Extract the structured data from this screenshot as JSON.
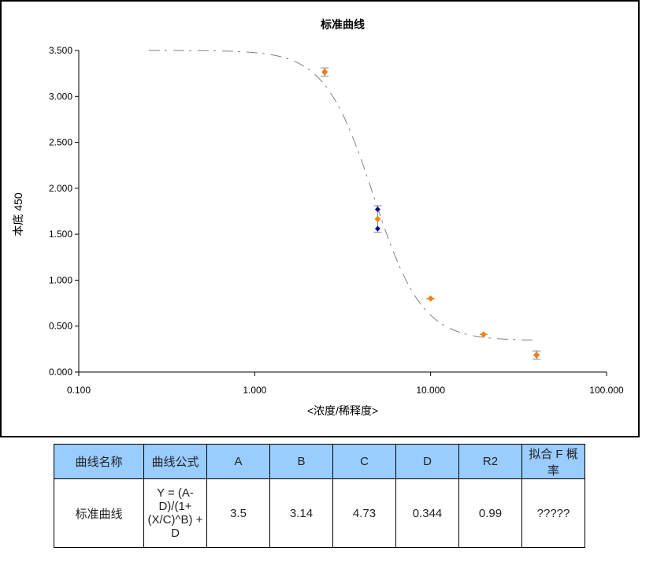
{
  "chart_data": {
    "type": "scatter",
    "title": "标准曲线",
    "xlabel": "<浓度/稀释度>",
    "ylabel": "本底 450",
    "xscale": "log",
    "xlim": [
      0.1,
      100
    ],
    "ylim": [
      0,
      3.5
    ],
    "xticks": [
      "0.100",
      "1.000",
      "10.000",
      "100.000"
    ],
    "yticks": [
      "0.000",
      "0.500",
      "1.000",
      "1.500",
      "2.000",
      "2.500",
      "3.000",
      "3.500"
    ],
    "grid": false,
    "replicates": {
      "x": [
        2.5,
        2.5,
        5,
        5,
        10,
        20,
        40,
        40
      ],
      "y": [
        3.27,
        3.26,
        1.77,
        1.56,
        0.8,
        0.41,
        0.19,
        0.18
      ]
    },
    "means": {
      "x": [
        2.5,
        5,
        10,
        20,
        40
      ],
      "y": [
        3.265,
        1.665,
        0.8,
        0.41,
        0.185
      ]
    },
    "fit": {
      "model": "4PL",
      "A": 3.5,
      "B": 3.14,
      "C": 4.73,
      "D": 0.344,
      "xrange": [
        0.25,
        40
      ]
    },
    "colors": {
      "replicate": "#000099",
      "mean": "#ff8000",
      "curve": "#808080"
    }
  },
  "table": {
    "headers": [
      "曲线名称",
      "曲线公式",
      "A",
      "B",
      "C",
      "D",
      "R2",
      "拟合 F 概率"
    ],
    "row": [
      "标准曲线",
      "Y = (A-D)/(1+(X/C)^B) + D",
      "3.5",
      "3.14",
      "4.73",
      "0.344",
      "0.99",
      "?????"
    ]
  }
}
